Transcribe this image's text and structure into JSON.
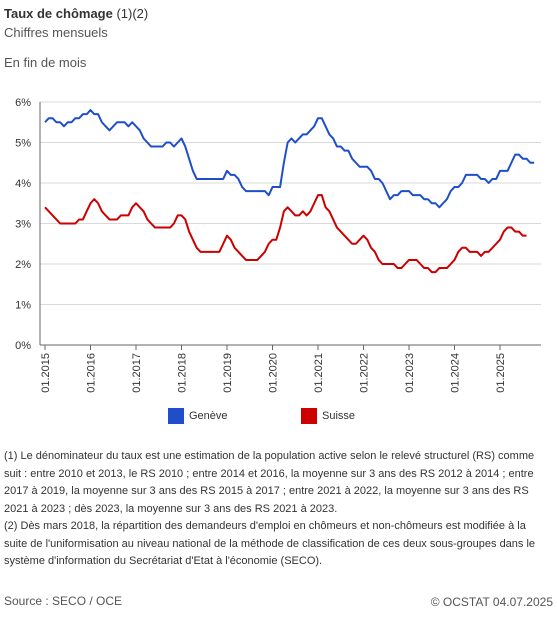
{
  "header": {
    "title": "Taux de chômage",
    "title_suffix": "(1)(2)",
    "subtitle": "Chiffres mensuels",
    "note": "En fin de mois"
  },
  "legend": {
    "geneve": "Genève",
    "suisse": "Suisse"
  },
  "footnotes": {
    "note1": "(1) Le dénominateur du taux est une estimation de la population active selon le relevé structurel (RS) comme suit : entre 2010 et 2013, le RS 2010 ; entre 2014 et 2016, la moyenne sur 3 ans des RS 2012 à 2014 ; entre 2017 à 2019, la moyenne sur 3 ans des RS 2015 à 2017 ; entre 2021 à 2022, la moyenne sur 3 ans des RS 2021 à 2023 ; dès 2023, la moyenne sur 3 ans des RS 2021 à 2023.",
    "note2": "(2) Dès mars 2018, la répartition des demandeurs d'emploi en chômeurs et non-chômeurs est modifiée à la suite de l'uniformisation au niveau national de la méthode de classification de ces deux sous-groupes dans le système d'information du Secrétariat d'Etat à l'économie (SECO)."
  },
  "footer": {
    "source": "Source : SECO / OCE",
    "copyright": "© OCSTAT 04.07.2025"
  },
  "colors": {
    "geneve": "#1f4fc8",
    "suisse": "#cc0000",
    "grid": "#d9d9d9",
    "axis": "#666666"
  },
  "chart_data": {
    "type": "line",
    "x_start": "01.2015",
    "x_step": "month",
    "x_ticks": [
      "01.2015",
      "01.2016",
      "01.2017",
      "01.2018",
      "01.2019",
      "01.2020",
      "01.2021",
      "01.2022",
      "01.2023",
      "01.2024",
      "01.2025"
    ],
    "ylim": [
      0,
      6
    ],
    "y_ticks": [
      "0%",
      "1%",
      "2%",
      "3%",
      "4%",
      "5%",
      "6%"
    ],
    "y_unit": "%",
    "grid": true,
    "legend_position": "bottom",
    "series": [
      {
        "name": "Genève",
        "color_key": "geneve",
        "values": [
          5.5,
          5.6,
          5.6,
          5.5,
          5.5,
          5.4,
          5.5,
          5.5,
          5.6,
          5.6,
          5.7,
          5.7,
          5.8,
          5.7,
          5.7,
          5.5,
          5.4,
          5.3,
          5.4,
          5.5,
          5.5,
          5.5,
          5.4,
          5.5,
          5.4,
          5.3,
          5.1,
          5.0,
          4.9,
          4.9,
          4.9,
          4.9,
          5.0,
          5.0,
          4.9,
          5.0,
          5.1,
          4.9,
          4.6,
          4.3,
          4.1,
          4.1,
          4.1,
          4.1,
          4.1,
          4.1,
          4.1,
          4.1,
          4.3,
          4.2,
          4.2,
          4.1,
          3.9,
          3.8,
          3.8,
          3.8,
          3.8,
          3.8,
          3.8,
          3.7,
          3.9,
          3.9,
          3.9,
          4.5,
          5.0,
          5.1,
          5.0,
          5.1,
          5.2,
          5.2,
          5.3,
          5.4,
          5.6,
          5.6,
          5.4,
          5.2,
          5.1,
          4.9,
          4.9,
          4.8,
          4.8,
          4.6,
          4.5,
          4.4,
          4.4,
          4.4,
          4.3,
          4.1,
          4.1,
          4.0,
          3.8,
          3.6,
          3.7,
          3.7,
          3.8,
          3.8,
          3.8,
          3.7,
          3.7,
          3.7,
          3.6,
          3.6,
          3.5,
          3.5,
          3.4,
          3.5,
          3.6,
          3.8,
          3.9,
          3.9,
          4.0,
          4.2,
          4.2,
          4.2,
          4.2,
          4.1,
          4.1,
          4.0,
          4.1,
          4.1,
          4.3,
          4.3,
          4.3,
          4.5,
          4.7,
          4.7,
          4.6,
          4.6,
          4.5,
          4.5
        ]
      },
      {
        "name": "Suisse",
        "color_key": "suisse",
        "values": [
          3.4,
          3.3,
          3.2,
          3.1,
          3.0,
          3.0,
          3.0,
          3.0,
          3.0,
          3.1,
          3.1,
          3.3,
          3.5,
          3.6,
          3.5,
          3.3,
          3.2,
          3.1,
          3.1,
          3.1,
          3.2,
          3.2,
          3.2,
          3.4,
          3.5,
          3.4,
          3.3,
          3.1,
          3.0,
          2.9,
          2.9,
          2.9,
          2.9,
          2.9,
          3.0,
          3.2,
          3.2,
          3.1,
          2.8,
          2.6,
          2.4,
          2.3,
          2.3,
          2.3,
          2.3,
          2.3,
          2.3,
          2.5,
          2.7,
          2.6,
          2.4,
          2.3,
          2.2,
          2.1,
          2.1,
          2.1,
          2.1,
          2.2,
          2.3,
          2.5,
          2.6,
          2.6,
          2.9,
          3.3,
          3.4,
          3.3,
          3.2,
          3.2,
          3.3,
          3.2,
          3.3,
          3.5,
          3.7,
          3.7,
          3.4,
          3.3,
          3.1,
          2.9,
          2.8,
          2.7,
          2.6,
          2.5,
          2.5,
          2.6,
          2.7,
          2.6,
          2.4,
          2.3,
          2.1,
          2.0,
          2.0,
          2.0,
          2.0,
          1.9,
          1.9,
          2.0,
          2.1,
          2.1,
          2.1,
          2.0,
          1.9,
          1.9,
          1.8,
          1.8,
          1.9,
          1.9,
          1.9,
          2.0,
          2.1,
          2.3,
          2.4,
          2.4,
          2.3,
          2.3,
          2.3,
          2.2,
          2.3,
          2.3,
          2.4,
          2.5,
          2.6,
          2.8,
          2.9,
          2.9,
          2.8,
          2.8,
          2.7,
          2.7
        ]
      }
    ]
  }
}
